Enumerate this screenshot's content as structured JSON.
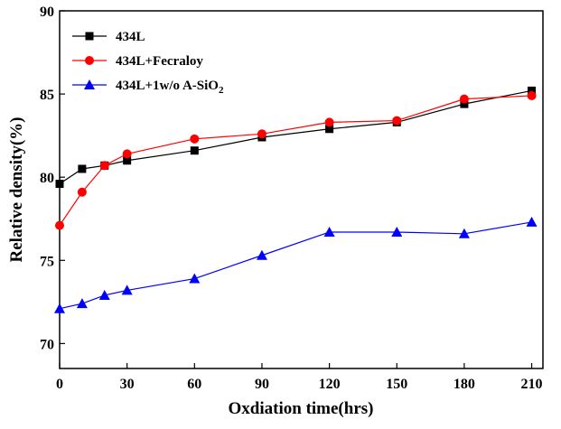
{
  "chart_data": {
    "type": "line",
    "title": "",
    "xlabel": "Oxdiation time(hrs)",
    "ylabel": "Relative density(%)",
    "xlim": [
      0,
      215
    ],
    "ylim": [
      68.5,
      90
    ],
    "xticks": [
      0,
      30,
      60,
      90,
      120,
      150,
      180,
      210
    ],
    "yticks": [
      70,
      75,
      80,
      85,
      90
    ],
    "grid": false,
    "legend_position": "top-left",
    "series": [
      {
        "name": "434L",
        "color": "#000000",
        "marker": "square",
        "x": [
          0,
          10,
          20,
          30,
          60,
          90,
          120,
          150,
          180,
          210
        ],
        "y": [
          79.6,
          80.5,
          80.7,
          81.0,
          81.6,
          82.4,
          82.9,
          83.3,
          84.4,
          85.2
        ]
      },
      {
        "name": "434L+Fecraloy",
        "color": "#ff0000",
        "marker": "circle",
        "x": [
          0,
          10,
          20,
          30,
          60,
          90,
          120,
          150,
          180,
          210
        ],
        "y": [
          77.1,
          79.1,
          80.7,
          81.4,
          82.3,
          82.6,
          83.3,
          83.4,
          84.7,
          84.9
        ]
      },
      {
        "name": "434L+1w/o A-SiO",
        "name_subscript": "2",
        "color": "#0000ff",
        "marker": "triangle",
        "x": [
          0,
          10,
          20,
          30,
          60,
          90,
          120,
          150,
          180,
          210
        ],
        "y": [
          72.1,
          72.4,
          72.9,
          73.2,
          73.9,
          75.3,
          76.7,
          76.7,
          76.6,
          77.3
        ]
      }
    ]
  }
}
